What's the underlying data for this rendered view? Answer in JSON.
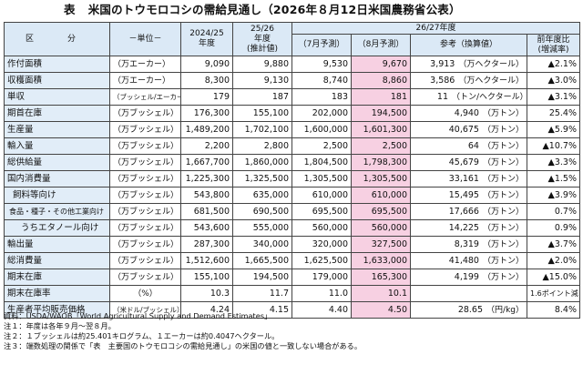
{
  "title": {
    "lead": "表",
    "text": "米国のトウモロコシの需給見通し（2026年８月12日米国農務省公表）"
  },
  "headers": {
    "kubun": "区　分",
    "unit": "－単位－",
    "y2425_line1": "2024/25",
    "y2425_line2": "年度",
    "y2526_line1": "25/26",
    "y2526_line2": "年度",
    "y2526_line3": "(推計値)",
    "band_2627": "26/27年度",
    "jul": "（7月予測）",
    "aug": "（8月予測）",
    "conv": "参考（換算値）",
    "yoy_line1": "前年度比",
    "yoy_line2": "(増減率)"
  },
  "rows": [
    {
      "name": "作付面積",
      "indent": 0,
      "unit": "（万エーカー）",
      "v2425": "9,090",
      "v2526": "9,880",
      "jul": "9,530",
      "aug": "9,670",
      "conv": "3,913",
      "conv_unit": "（万ヘクタール）",
      "yoy": "▲2.1%"
    },
    {
      "name": "収穫面積",
      "indent": 0,
      "unit": "（万エーカー）",
      "v2425": "8,300",
      "v2526": "9,130",
      "jul": "8,740",
      "aug": "8,860",
      "conv": "3,586",
      "conv_unit": "（万ヘクタール）",
      "yoy": "▲3.0%"
    },
    {
      "name": "単収",
      "indent": 0,
      "unit": "（ブッシェル/エーカー）",
      "unit_small": true,
      "v2425": "179",
      "v2526": "187",
      "jul": "183",
      "aug": "181",
      "conv": "11",
      "conv_unit": "（トン/ヘクタール）",
      "yoy": "▲3.1%"
    },
    {
      "name": "期首在庫",
      "indent": 0,
      "unit": "（万ブッシェル）",
      "v2425": "176,300",
      "v2526": "155,100",
      "jul": "202,000",
      "aug": "194,500",
      "conv": "4,940",
      "conv_unit": "（万トン）",
      "yoy": "25.4%"
    },
    {
      "name": "生産量",
      "indent": 0,
      "unit": "（万ブッシェル）",
      "v2425": "1,489,200",
      "v2526": "1,702,100",
      "jul": "1,600,000",
      "aug": "1,601,300",
      "conv": "40,675",
      "conv_unit": "（万トン）",
      "yoy": "▲5.9%"
    },
    {
      "name": "輸入量",
      "indent": 0,
      "unit": "（万ブッシェル）",
      "v2425": "2,200",
      "v2526": "2,800",
      "jul": "2,500",
      "aug": "2,500",
      "conv": "64",
      "conv_unit": "（万トン）",
      "yoy": "▲10.7%"
    },
    {
      "name": "総供給量",
      "indent": 0,
      "unit": "（万ブッシェル）",
      "v2425": "1,667,700",
      "v2526": "1,860,000",
      "jul": "1,804,500",
      "aug": "1,798,300",
      "conv": "45,679",
      "conv_unit": "（万トン）",
      "yoy": "▲3.3%"
    },
    {
      "name": "国内消費量",
      "indent": 0,
      "unit": "（万ブッシェル）",
      "v2425": "1,225,300",
      "v2526": "1,325,500",
      "jul": "1,305,500",
      "aug": "1,305,500",
      "conv": "33,161",
      "conv_unit": "（万トン）",
      "yoy": "▲1.5%"
    },
    {
      "name": "飼料等向け",
      "indent": 1,
      "unit": "（万ブッシェル）",
      "v2425": "543,800",
      "v2526": "635,000",
      "jul": "610,000",
      "aug": "610,000",
      "conv": "15,495",
      "conv_unit": "（万トン）",
      "yoy": "▲3.9%"
    },
    {
      "name": "食品・種子・その他工業向け",
      "indent": 2,
      "unit": "（万ブッシェル）",
      "v2425": "681,500",
      "v2526": "690,500",
      "jul": "695,500",
      "aug": "695,500",
      "conv": "17,666",
      "conv_unit": "（万トン）",
      "yoy": "0.7%"
    },
    {
      "name": "うちエタノール向け",
      "indent": 3,
      "unit": "（万ブッシェル）",
      "v2425": "543,600",
      "v2526": "555,000",
      "jul": "560,000",
      "aug": "560,000",
      "conv": "14,225",
      "conv_unit": "（万トン）",
      "yoy": "0.9%"
    },
    {
      "name": "輸出量",
      "indent": 0,
      "unit": "（万ブッシェル）",
      "v2425": "287,300",
      "v2526": "340,000",
      "jul": "320,000",
      "aug": "327,500",
      "conv": "8,319",
      "conv_unit": "（万トン）",
      "yoy": "▲3.7%"
    },
    {
      "name": "総消費量",
      "indent": 0,
      "unit": "（万ブッシェル）",
      "v2425": "1,512,600",
      "v2526": "1,665,500",
      "jul": "1,625,500",
      "aug": "1,633,000",
      "conv": "41,480",
      "conv_unit": "（万トン）",
      "yoy": "▲2.0%"
    },
    {
      "name": "期末在庫",
      "indent": 0,
      "unit": "（万ブッシェル）",
      "v2425": "155,100",
      "v2526": "194,500",
      "jul": "179,000",
      "aug": "165,300",
      "conv": "4,199",
      "conv_unit": "（万トン）",
      "yoy": "▲15.0%"
    },
    {
      "name": "期末在庫率",
      "indent": 0,
      "unit": "（%）",
      "unit_center": true,
      "v2425": "10.3",
      "v2526": "11.7",
      "jul": "11.0",
      "aug": "10.1",
      "conv": "",
      "conv_unit": "",
      "yoy": "1.6ポイント減",
      "yoy_small": true
    },
    {
      "name": "生産者平均販売価格",
      "indent": 0,
      "unit": "（米ドル/ブッシェル）",
      "unit_small": true,
      "v2425": "4.24",
      "v2526": "4.15",
      "jul": "4.40",
      "aug": "4.50",
      "conv": "28.65",
      "conv_unit": "（円/kg）",
      "conv_unit_right": true,
      "yoy": "8.4%"
    }
  ],
  "notes": [
    "資料：USDA/WAOB「World Agricultural Supply and Demand Estimates」",
    "注１：年度は各年９月～翌８月。",
    "注２：１ブッシェルは約25.401キログラム、１エーカーは約0.4047ヘクタール。",
    "注３：端数処理の関係で「表　主要国のトウモロコシの需給見通し」の米国の値と一致しない場合がある。"
  ]
}
